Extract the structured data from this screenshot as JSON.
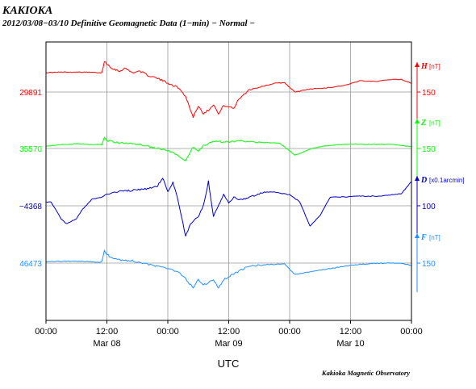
{
  "header": {
    "station": "KAKIOKA",
    "subtitle": "2012/03/08−03/10  Definitive Geomagnetic Data (1−min)  − Normal −"
  },
  "footer": {
    "credit": "Kakioka Magnetic Observatory"
  },
  "chart_data": {
    "type": "line",
    "xlabel": "UTC",
    "x_unit": "hours since 2012-03-08 00:00 UTC",
    "x_range": [
      0,
      72
    ],
    "x_ticks": [
      {
        "hour": 0,
        "time": "00:00",
        "date": ""
      },
      {
        "hour": 12,
        "time": "12:00",
        "date": "Mar 08"
      },
      {
        "hour": 24,
        "time": "00:00",
        "date": ""
      },
      {
        "hour": 36,
        "time": "12:00",
        "date": "Mar 09"
      },
      {
        "hour": 48,
        "time": "00:00",
        "date": ""
      },
      {
        "hour": 60,
        "time": "12:00",
        "date": "Mar 10"
      },
      {
        "hour": 72,
        "time": "00:00",
        "date": ""
      }
    ],
    "series": [
      {
        "name": "H",
        "unit": "[nT]",
        "color": "#ff0000",
        "baseline_label": "29891",
        "scale_label": "150",
        "baseline_value": 29891,
        "scale_span": 150,
        "points": [
          [
            0,
            29951
          ],
          [
            4,
            29953
          ],
          [
            9,
            29952
          ],
          [
            11,
            29950
          ],
          [
            11.5,
            29987
          ],
          [
            12,
            29978
          ],
          [
            13,
            29965
          ],
          [
            14.5,
            29955
          ],
          [
            15.5,
            29965
          ],
          [
            17,
            29951
          ],
          [
            18.5,
            29956
          ],
          [
            20,
            29943
          ],
          [
            22,
            29933
          ],
          [
            24,
            29919
          ],
          [
            26,
            29905
          ],
          [
            27.5,
            29878
          ],
          [
            29,
            29813
          ],
          [
            30,
            29848
          ],
          [
            31,
            29825
          ],
          [
            32,
            29835
          ],
          [
            33,
            29853
          ],
          [
            34,
            29822
          ],
          [
            35,
            29850
          ],
          [
            36,
            29845
          ],
          [
            37,
            29840
          ],
          [
            38,
            29870
          ],
          [
            40,
            29898
          ],
          [
            42,
            29906
          ],
          [
            45,
            29918
          ],
          [
            47,
            29920
          ],
          [
            49,
            29891
          ],
          [
            50,
            29894
          ],
          [
            52,
            29900
          ],
          [
            56,
            29905
          ],
          [
            59,
            29912
          ],
          [
            62,
            29926
          ],
          [
            65,
            29924
          ],
          [
            68,
            29930
          ],
          [
            70,
            29930
          ],
          [
            72,
            29918
          ]
        ]
      },
      {
        "name": "Z",
        "unit": "[nT]",
        "color": "#00ff00",
        "baseline_label": "35570",
        "scale_label": "150",
        "baseline_value": 35570,
        "scale_span": 150,
        "points": [
          [
            0,
            35578
          ],
          [
            6,
            35585
          ],
          [
            9,
            35582
          ],
          [
            11,
            35583
          ],
          [
            11.5,
            35605
          ],
          [
            12,
            35595
          ],
          [
            14,
            35588
          ],
          [
            18,
            35584
          ],
          [
            20,
            35577
          ],
          [
            22,
            35570
          ],
          [
            24,
            35563
          ],
          [
            26,
            35548
          ],
          [
            27.5,
            35530
          ],
          [
            29,
            35574
          ],
          [
            30,
            35563
          ],
          [
            31,
            35579
          ],
          [
            33,
            35593
          ],
          [
            35,
            35590
          ],
          [
            37,
            35592
          ],
          [
            38,
            35597
          ],
          [
            40,
            35590
          ],
          [
            44,
            35588
          ],
          [
            46,
            35586
          ],
          [
            47,
            35575
          ],
          [
            49,
            35550
          ],
          [
            50,
            35555
          ],
          [
            53,
            35573
          ],
          [
            56,
            35580
          ],
          [
            60,
            35584
          ],
          [
            64,
            35583
          ],
          [
            68,
            35583
          ],
          [
            72,
            35576
          ]
        ]
      },
      {
        "name": "D",
        "unit": "[x0.1arcmin]",
        "color": "#0000cc",
        "baseline_label": "−4368",
        "scale_label": "100",
        "baseline_value": -4368,
        "scale_span": 100,
        "points": [
          [
            0,
            -4360
          ],
          [
            1,
            -4360
          ],
          [
            3,
            -4395
          ],
          [
            4,
            -4405
          ],
          [
            6,
            -4395
          ],
          [
            7,
            -4378
          ],
          [
            9,
            -4355
          ],
          [
            11,
            -4350
          ],
          [
            12,
            -4345
          ],
          [
            14,
            -4339
          ],
          [
            18,
            -4335
          ],
          [
            20,
            -4333
          ],
          [
            22,
            -4327
          ],
          [
            23,
            -4310
          ],
          [
            24,
            -4340
          ],
          [
            25,
            -4320
          ],
          [
            26,
            -4355
          ],
          [
            27,
            -4405
          ],
          [
            27.5,
            -4430
          ],
          [
            28.5,
            -4405
          ],
          [
            30,
            -4390
          ],
          [
            31,
            -4368
          ],
          [
            32,
            -4318
          ],
          [
            33,
            -4390
          ],
          [
            35,
            -4345
          ],
          [
            36,
            -4363
          ],
          [
            37,
            -4350
          ],
          [
            38,
            -4357
          ],
          [
            40,
            -4350
          ],
          [
            43,
            -4340
          ],
          [
            45,
            -4340
          ],
          [
            48,
            -4345
          ],
          [
            50,
            -4360
          ],
          [
            52,
            -4410
          ],
          [
            54,
            -4388
          ],
          [
            56,
            -4350
          ],
          [
            58,
            -4350
          ],
          [
            62,
            -4348
          ],
          [
            66,
            -4348
          ],
          [
            70,
            -4343
          ],
          [
            72,
            -4318
          ]
        ]
      },
      {
        "name": "F",
        "unit": "[nT]",
        "color": "#1e90ff",
        "baseline_label": "46473",
        "scale_label": "150",
        "baseline_value": 46473,
        "scale_span": 150,
        "points": [
          [
            0,
            46478
          ],
          [
            6,
            46479
          ],
          [
            9,
            46477
          ],
          [
            11,
            46476
          ],
          [
            11.5,
            46510
          ],
          [
            12,
            46500
          ],
          [
            13,
            46490
          ],
          [
            15,
            46482
          ],
          [
            17,
            46480
          ],
          [
            19,
            46474
          ],
          [
            22,
            46462
          ],
          [
            24,
            46458
          ],
          [
            26,
            46445
          ],
          [
            27.5,
            46425
          ],
          [
            29,
            46395
          ],
          [
            30,
            46424
          ],
          [
            31,
            46405
          ],
          [
            33,
            46420
          ],
          [
            34,
            46395
          ],
          [
            35,
            46422
          ],
          [
            37,
            46440
          ],
          [
            40,
            46464
          ],
          [
            43,
            46468
          ],
          [
            47,
            46470
          ],
          [
            49,
            46438
          ],
          [
            50,
            46440
          ],
          [
            53,
            46449
          ],
          [
            56,
            46456
          ],
          [
            60,
            46466
          ],
          [
            64,
            46472
          ],
          [
            68,
            46473
          ],
          [
            70,
            46473
          ],
          [
            72,
            46466
          ]
        ]
      }
    ],
    "grid": true,
    "legend": "right"
  }
}
